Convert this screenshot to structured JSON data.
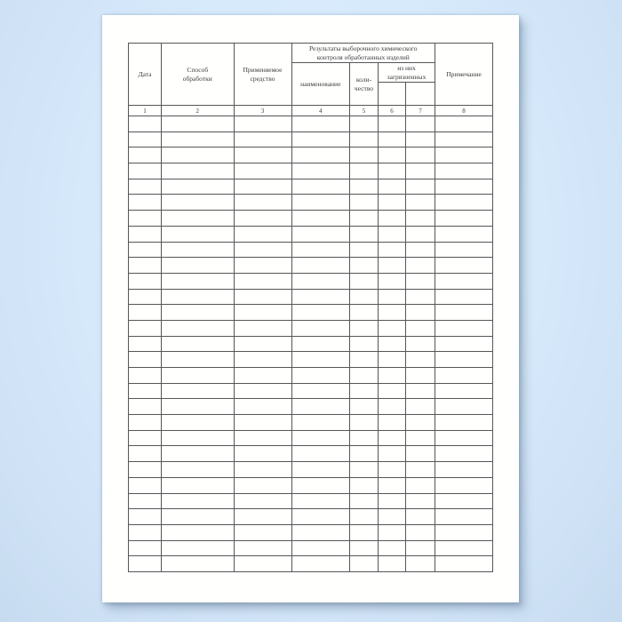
{
  "colors": {
    "background_blue": "#d6e9fb",
    "paper_white": "#fffffe",
    "line_gray": "#565656",
    "text_gray": "#3b3b3b"
  },
  "table": {
    "group_header": {
      "line1": "Результаты выборочного химического",
      "line2": "контроля обработанных изделий"
    },
    "headers": {
      "date": "Дата",
      "method_line1": "Способ",
      "method_line2": "обработки",
      "agent_line1": "Применяемое",
      "agent_line2": "средство",
      "name": "наименование",
      "quantity_line1": "коли-",
      "quantity_line2": "чество",
      "contaminated_line1": "из них",
      "contaminated_line2": "загрязненных",
      "note": "Примечание"
    },
    "column_numbers": [
      "1",
      "2",
      "3",
      "4",
      "5",
      "6",
      "7",
      "8"
    ],
    "body": {
      "empty_row_count": 29,
      "columns": 8
    }
  }
}
